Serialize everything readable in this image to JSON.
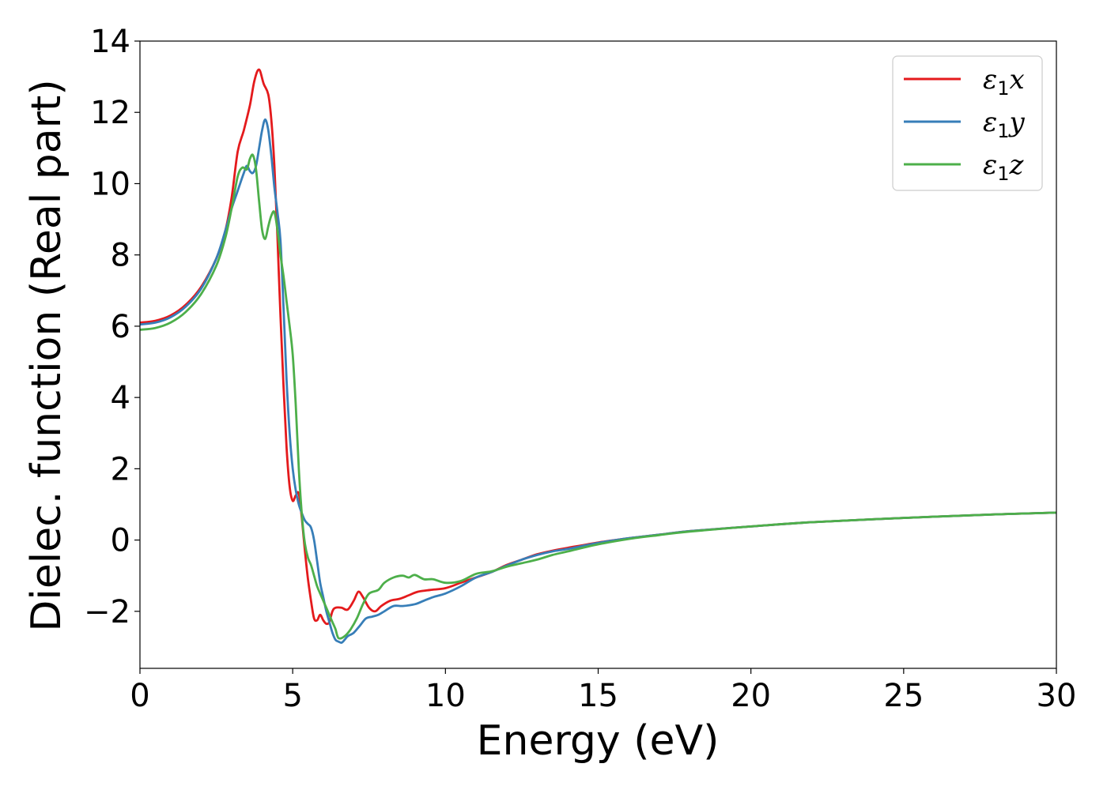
{
  "chart_data": {
    "type": "line",
    "title": "",
    "xlabel": "Energy (eV)",
    "ylabel": "Dielec. function (Real part)",
    "xlim": [
      0,
      30
    ],
    "ylim": [
      -3.6,
      14
    ],
    "x_ticks": [
      0,
      5,
      10,
      15,
      20,
      25,
      30
    ],
    "x_tick_labels": [
      "0",
      "5",
      "10",
      "15",
      "20",
      "25",
      "30"
    ],
    "y_ticks": [
      -2,
      0,
      2,
      4,
      6,
      8,
      10,
      12,
      14
    ],
    "y_tick_labels": [
      "−2",
      "0",
      "2",
      "4",
      "6",
      "8",
      "10",
      "12",
      "14"
    ],
    "grid": false,
    "legend_position": "top-right",
    "series": [
      {
        "name": "ε₁x",
        "legend_symbol": "ε",
        "legend_sub": "1",
        "legend_suffix": "x",
        "color": "#e41a1c",
        "points": [
          [
            0,
            6.1
          ],
          [
            0.5,
            6.15
          ],
          [
            1,
            6.3
          ],
          [
            1.5,
            6.6
          ],
          [
            2,
            7.1
          ],
          [
            2.5,
            7.9
          ],
          [
            2.8,
            8.7
          ],
          [
            3,
            9.6
          ],
          [
            3.2,
            10.9
          ],
          [
            3.4,
            11.5
          ],
          [
            3.6,
            12.2
          ],
          [
            3.75,
            12.9
          ],
          [
            3.9,
            13.2
          ],
          [
            4.05,
            12.8
          ],
          [
            4.2,
            12.5
          ],
          [
            4.3,
            11.8
          ],
          [
            4.4,
            10.5
          ],
          [
            4.5,
            8.5
          ],
          [
            4.6,
            6.3
          ],
          [
            4.7,
            4.3
          ],
          [
            4.8,
            2.6
          ],
          [
            4.9,
            1.5
          ],
          [
            5,
            1.1
          ],
          [
            5.1,
            1.25
          ],
          [
            5.2,
            1.3
          ],
          [
            5.3,
            0.6
          ],
          [
            5.4,
            -0.3
          ],
          [
            5.5,
            -1.1
          ],
          [
            5.6,
            -1.7
          ],
          [
            5.7,
            -2.2
          ],
          [
            5.8,
            -2.25
          ],
          [
            5.9,
            -2.1
          ],
          [
            6,
            -2.25
          ],
          [
            6.1,
            -2.35
          ],
          [
            6.2,
            -2.3
          ],
          [
            6.3,
            -2.0
          ],
          [
            6.4,
            -1.9
          ],
          [
            6.6,
            -1.9
          ],
          [
            6.8,
            -1.95
          ],
          [
            7,
            -1.7
          ],
          [
            7.15,
            -1.45
          ],
          [
            7.3,
            -1.6
          ],
          [
            7.5,
            -1.9
          ],
          [
            7.7,
            -2.0
          ],
          [
            7.9,
            -1.85
          ],
          [
            8.2,
            -1.7
          ],
          [
            8.5,
            -1.65
          ],
          [
            8.8,
            -1.55
          ],
          [
            9.1,
            -1.45
          ],
          [
            9.5,
            -1.4
          ],
          [
            10,
            -1.35
          ],
          [
            10.5,
            -1.2
          ],
          [
            11,
            -1.05
          ],
          [
            11.5,
            -0.9
          ],
          [
            12,
            -0.7
          ],
          [
            12.5,
            -0.55
          ],
          [
            13,
            -0.4
          ],
          [
            13.5,
            -0.3
          ],
          [
            14,
            -0.22
          ],
          [
            15,
            -0.07
          ],
          [
            16,
            0.05
          ],
          [
            17,
            0.15
          ],
          [
            18,
            0.25
          ],
          [
            20,
            0.38
          ],
          [
            22,
            0.5
          ],
          [
            25,
            0.62
          ],
          [
            28,
            0.72
          ],
          [
            30,
            0.77
          ]
        ]
      },
      {
        "name": "ε₁y",
        "legend_symbol": "ε",
        "legend_sub": "1",
        "legend_suffix": "y",
        "color": "#377eb8",
        "points": [
          [
            0,
            6.05
          ],
          [
            0.5,
            6.1
          ],
          [
            1,
            6.25
          ],
          [
            1.5,
            6.55
          ],
          [
            2,
            7.05
          ],
          [
            2.5,
            7.9
          ],
          [
            2.8,
            8.7
          ],
          [
            3,
            9.3
          ],
          [
            3.2,
            9.8
          ],
          [
            3.4,
            10.3
          ],
          [
            3.5,
            10.5
          ],
          [
            3.6,
            10.35
          ],
          [
            3.7,
            10.3
          ],
          [
            3.8,
            10.5
          ],
          [
            3.9,
            11.0
          ],
          [
            4.0,
            11.5
          ],
          [
            4.1,
            11.8
          ],
          [
            4.2,
            11.5
          ],
          [
            4.3,
            10.8
          ],
          [
            4.4,
            9.9
          ],
          [
            4.5,
            9.2
          ],
          [
            4.6,
            8.4
          ],
          [
            4.7,
            6.5
          ],
          [
            4.8,
            4.5
          ],
          [
            4.9,
            3.0
          ],
          [
            5,
            2.0
          ],
          [
            5.1,
            1.4
          ],
          [
            5.2,
            1.0
          ],
          [
            5.3,
            0.75
          ],
          [
            5.4,
            0.55
          ],
          [
            5.5,
            0.45
          ],
          [
            5.6,
            0.35
          ],
          [
            5.7,
            0.0
          ],
          [
            5.8,
            -0.6
          ],
          [
            5.9,
            -1.2
          ],
          [
            6,
            -1.6
          ],
          [
            6.1,
            -2.0
          ],
          [
            6.2,
            -2.3
          ],
          [
            6.3,
            -2.6
          ],
          [
            6.4,
            -2.8
          ],
          [
            6.5,
            -2.85
          ],
          [
            6.6,
            -2.88
          ],
          [
            6.7,
            -2.8
          ],
          [
            6.8,
            -2.7
          ],
          [
            7,
            -2.6
          ],
          [
            7.2,
            -2.4
          ],
          [
            7.4,
            -2.2
          ],
          [
            7.6,
            -2.15
          ],
          [
            7.8,
            -2.1
          ],
          [
            8,
            -2.0
          ],
          [
            8.3,
            -1.85
          ],
          [
            8.6,
            -1.85
          ],
          [
            9,
            -1.8
          ],
          [
            9.3,
            -1.7
          ],
          [
            9.6,
            -1.6
          ],
          [
            10,
            -1.5
          ],
          [
            10.5,
            -1.3
          ],
          [
            11,
            -1.05
          ],
          [
            11.5,
            -0.9
          ],
          [
            12,
            -0.72
          ],
          [
            12.5,
            -0.55
          ],
          [
            13,
            -0.42
          ],
          [
            13.5,
            -0.32
          ],
          [
            14,
            -0.25
          ],
          [
            15,
            -0.08
          ],
          [
            16,
            0.05
          ],
          [
            17,
            0.15
          ],
          [
            18,
            0.25
          ],
          [
            20,
            0.38
          ],
          [
            22,
            0.5
          ],
          [
            25,
            0.62
          ],
          [
            28,
            0.72
          ],
          [
            30,
            0.77
          ]
        ]
      },
      {
        "name": "ε₁z",
        "legend_symbol": "ε",
        "legend_sub": "1",
        "legend_suffix": "z",
        "color": "#4daf4a",
        "points": [
          [
            0,
            5.9
          ],
          [
            0.5,
            5.95
          ],
          [
            1,
            6.1
          ],
          [
            1.5,
            6.4
          ],
          [
            2,
            6.9
          ],
          [
            2.5,
            7.7
          ],
          [
            2.8,
            8.5
          ],
          [
            3,
            9.3
          ],
          [
            3.2,
            10.2
          ],
          [
            3.35,
            10.45
          ],
          [
            3.5,
            10.4
          ],
          [
            3.6,
            10.7
          ],
          [
            3.7,
            10.8
          ],
          [
            3.8,
            10.4
          ],
          [
            3.9,
            9.5
          ],
          [
            4.0,
            8.7
          ],
          [
            4.1,
            8.45
          ],
          [
            4.2,
            8.8
          ],
          [
            4.3,
            9.1
          ],
          [
            4.4,
            9.2
          ],
          [
            4.5,
            8.7
          ],
          [
            4.6,
            8.0
          ],
          [
            4.7,
            7.4
          ],
          [
            4.8,
            6.7
          ],
          [
            4.9,
            6.0
          ],
          [
            5,
            5.2
          ],
          [
            5.1,
            3.8
          ],
          [
            5.2,
            2.0
          ],
          [
            5.3,
            0.7
          ],
          [
            5.4,
            -0.1
          ],
          [
            5.5,
            -0.5
          ],
          [
            5.6,
            -0.7
          ],
          [
            5.7,
            -1.0
          ],
          [
            5.8,
            -1.3
          ],
          [
            5.9,
            -1.5
          ],
          [
            6,
            -1.7
          ],
          [
            6.1,
            -1.9
          ],
          [
            6.2,
            -2.1
          ],
          [
            6.3,
            -2.3
          ],
          [
            6.4,
            -2.5
          ],
          [
            6.5,
            -2.75
          ],
          [
            6.7,
            -2.7
          ],
          [
            6.9,
            -2.5
          ],
          [
            7.1,
            -2.2
          ],
          [
            7.3,
            -1.8
          ],
          [
            7.5,
            -1.5
          ],
          [
            7.8,
            -1.4
          ],
          [
            8,
            -1.2
          ],
          [
            8.3,
            -1.05
          ],
          [
            8.6,
            -1.0
          ],
          [
            8.8,
            -1.05
          ],
          [
            9.0,
            -0.98
          ],
          [
            9.3,
            -1.1
          ],
          [
            9.6,
            -1.1
          ],
          [
            10,
            -1.2
          ],
          [
            10.5,
            -1.15
          ],
          [
            11,
            -0.95
          ],
          [
            11.5,
            -0.88
          ],
          [
            12,
            -0.75
          ],
          [
            12.5,
            -0.65
          ],
          [
            13,
            -0.55
          ],
          [
            13.5,
            -0.42
          ],
          [
            14,
            -0.32
          ],
          [
            15,
            -0.12
          ],
          [
            16,
            0.03
          ],
          [
            17,
            0.14
          ],
          [
            18,
            0.24
          ],
          [
            20,
            0.38
          ],
          [
            22,
            0.5
          ],
          [
            25,
            0.62
          ],
          [
            28,
            0.72
          ],
          [
            30,
            0.77
          ]
        ]
      }
    ]
  }
}
